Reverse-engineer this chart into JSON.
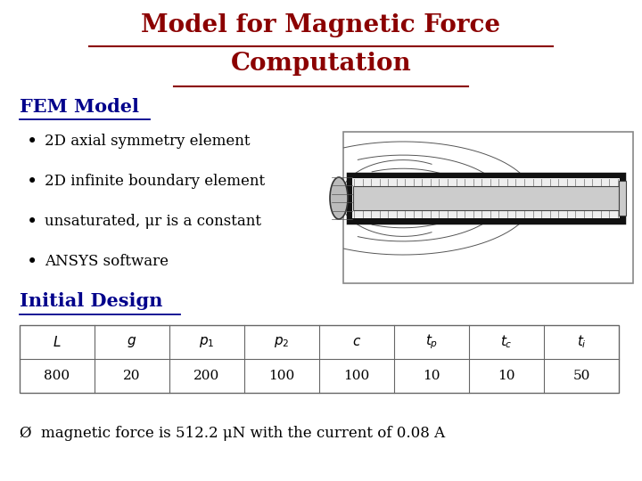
{
  "title_line1": "Model for Magnetic Force",
  "title_line2": "Computation",
  "title_color": "#8B0000",
  "title_fontsize": 20,
  "section1_title": "FEM Model",
  "section1_color": "#00008B",
  "section1_fontsize": 15,
  "bullets": [
    "2D axial symmetry element",
    "2D infinite boundary element",
    "unsaturated, μr is a constant",
    "ANSYS software"
  ],
  "bullet_fontsize": 12,
  "bullet_color": "#000000",
  "section2_title": "Initial Design",
  "section2_color": "#00008B",
  "section2_fontsize": 15,
  "table_values": [
    "800",
    "20",
    "200",
    "100",
    "100",
    "10",
    "10",
    "50"
  ],
  "footer_text": "Ø  magnetic force is 512.2 μN with the current of 0.08 A",
  "footer_fontsize": 12,
  "footer_color": "#000000",
  "bg_color": "#FFFFFF"
}
